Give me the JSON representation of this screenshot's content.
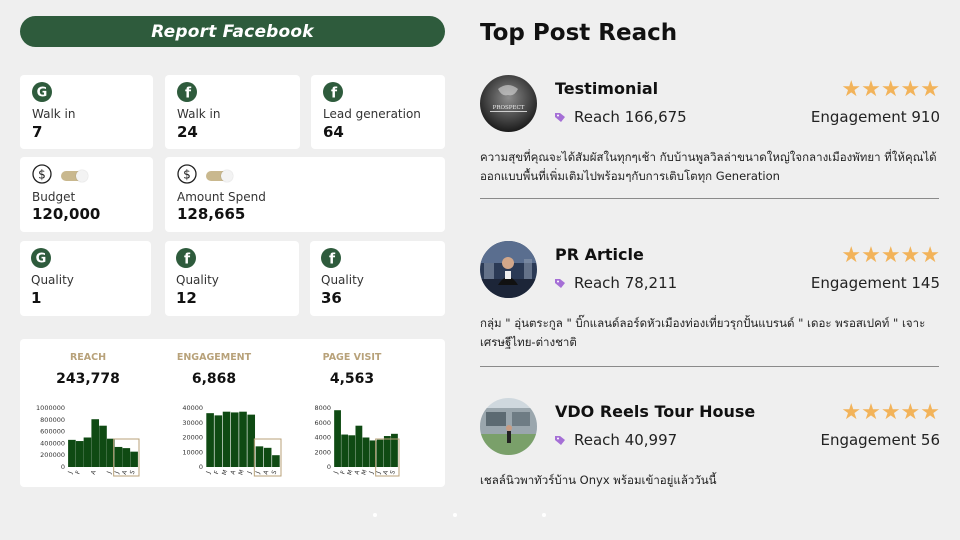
{
  "header": {
    "title": "Report Facebook"
  },
  "cards": [
    {
      "icon": "google-icon",
      "label": "Walk in",
      "value": "7"
    },
    {
      "icon": "facebook-icon",
      "label": "Walk in",
      "value": "24"
    },
    {
      "icon": "facebook-icon",
      "label": "Lead generation",
      "value": "64"
    },
    {
      "icon": "dollar-icon",
      "label": "Budget",
      "value": "120,000"
    },
    {
      "icon": "dollar-icon",
      "label": "Amount Spend",
      "value": "128,665"
    },
    {
      "icon": "google-icon",
      "label": "Quality",
      "value": "1"
    },
    {
      "icon": "facebook-icon",
      "label": "Quality",
      "value": "12"
    },
    {
      "icon": "facebook-icon",
      "label": "Quality",
      "value": "36"
    }
  ],
  "colors": {
    "brand_green": "#2e5b3c",
    "bar_green": "#0f4a13",
    "gold": "#b8a27a",
    "star": "#f2b35a",
    "tag_purple": "#a56fd6"
  },
  "chart_data": [
    {
      "type": "bar",
      "title": "REACH",
      "total": "243,778",
      "categories": [
        "J",
        "F",
        "M",
        "A",
        "M",
        "J",
        "J",
        "A",
        "S"
      ],
      "tick_labels": [
        "J",
        "F",
        "A",
        "J",
        "J",
        "A",
        "S"
      ],
      "yticks": [
        "0",
        "200000",
        "400000",
        "600000",
        "800000",
        "1000000"
      ],
      "ylim": [
        0,
        1000000
      ],
      "values": [
        460000,
        440000,
        500000,
        810000,
        700000,
        480000,
        340000,
        320000,
        260000
      ],
      "highlight": [
        "J",
        "A",
        "S"
      ]
    },
    {
      "type": "bar",
      "title": "ENGAGEMENT",
      "total": "6,868",
      "categories": [
        "J",
        "F",
        "M",
        "A",
        "M",
        "J",
        "J",
        "A",
        "S"
      ],
      "tick_labels": [
        "J",
        "F",
        "M",
        "A",
        "M",
        "J",
        "J",
        "A",
        "S"
      ],
      "yticks": [
        "0",
        "10000",
        "20000",
        "30000",
        "40000"
      ],
      "ylim": [
        0,
        40000
      ],
      "values": [
        36500,
        35000,
        37500,
        37000,
        37500,
        35500,
        14000,
        13000,
        8000
      ],
      "highlight": [
        "J",
        "A",
        "S"
      ]
    },
    {
      "type": "bar",
      "title": "PAGE VISIT",
      "total": "4,563",
      "categories": [
        "J",
        "F",
        "M",
        "A",
        "M",
        "J",
        "J",
        "A",
        "S"
      ],
      "tick_labels": [
        "J",
        "F",
        "M",
        "A",
        "M",
        "J",
        "J",
        "A",
        "S"
      ],
      "yticks": [
        "0",
        "2000",
        "4000",
        "6000",
        "8000"
      ],
      "ylim": [
        0,
        8000
      ],
      "values": [
        7700,
        4400,
        4300,
        5600,
        4000,
        3600,
        3700,
        4200,
        4500
      ],
      "highlight": [
        "J",
        "A",
        "S"
      ]
    }
  ],
  "right": {
    "title": "Top Post Reach",
    "posts": [
      {
        "name": "Testimonial",
        "reach": "Reach 166,675",
        "stars": "★★★★★",
        "rating": 5,
        "engagement": "Engagement 910",
        "description": "ความสุขที่คุณจะได้สัมผัสในทุกๆเช้า กับบ้านพูลวิลล่าขนาดใหญ่ใจกลางเมืองพัทยา ที่ให้คุณได้ออกแบบพื้นที่เพิ่มเติมไปพร้อมๆกับการเติบโตทุก Generation",
        "avatar_text": "PROSPECT"
      },
      {
        "name": "PR Article",
        "reach": "Reach 78,211",
        "stars": "★★★★★",
        "rating": 5,
        "engagement": "Engagement 145",
        "description": "กลุ่ม \" อุ่นตระกูล \" บิ๊กแลนด์ลอร์ดหัวเมืองท่องเที่ยวรุกปั้นแบรนด์ \" เดอะ พรอสเปคท์ \" เจาะเศรษฐีไทย-ต่างชาติ",
        "avatar_text": ""
      },
      {
        "name": "VDO Reels Tour House",
        "reach": "Reach 40,997",
        "stars": "★★★★★",
        "rating": 5,
        "engagement": "Engagement 56",
        "description": "เชลล์นิวพาทัวร์บ้าน Onyx พร้อมเข้าอยู่แล้ววันนี้",
        "avatar_text": ""
      }
    ]
  }
}
